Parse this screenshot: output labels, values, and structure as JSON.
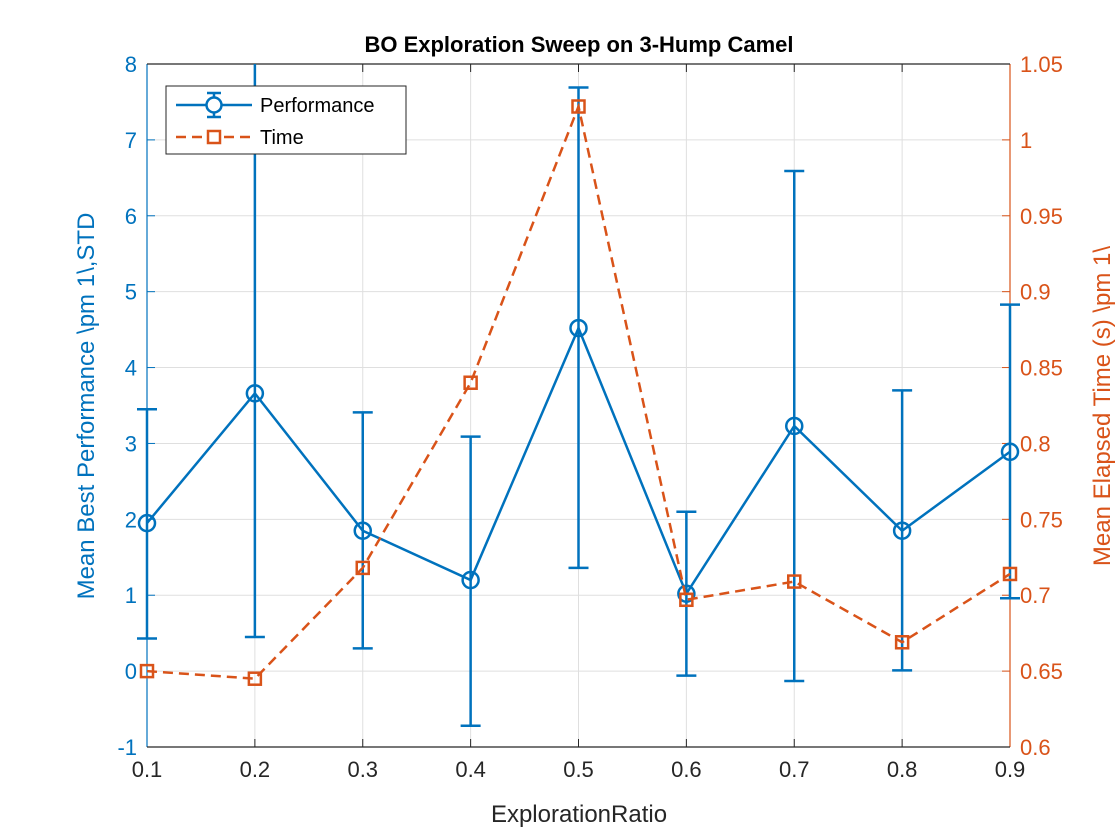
{
  "chart_data": {
    "type": "line",
    "title": "BO Exploration Sweep on 3-Hump Camel",
    "xlabel": "ExplorationRatio",
    "ylabel_left": "Mean Best Performance \\pm 1\\,STD",
    "ylabel_right": "Mean Elapsed Time (s) \\pm 1\\",
    "x": [
      0.1,
      0.2,
      0.3,
      0.4,
      0.5,
      0.6,
      0.7,
      0.8,
      0.9
    ],
    "xlim": [
      0.1,
      0.9
    ],
    "ylim_left": [
      -1,
      8
    ],
    "ylim_right": [
      0.6,
      1.05
    ],
    "x_ticks": [
      "0.1",
      "0.2",
      "0.3",
      "0.4",
      "0.5",
      "0.6",
      "0.7",
      "0.8",
      "0.9"
    ],
    "y_ticks_left": [
      "-1",
      "0",
      "1",
      "2",
      "3",
      "4",
      "5",
      "6",
      "7",
      "8"
    ],
    "y_ticks_right": [
      "0.6",
      "0.65",
      "0.7",
      "0.75",
      "0.8",
      "0.85",
      "0.9",
      "0.95",
      "1",
      "1.05"
    ],
    "grid": true,
    "legend_position": "top-left",
    "series": [
      {
        "name": "Performance",
        "axis": "left",
        "style": "solid line with circle markers and error bars",
        "color": "#0072BD",
        "values": [
          1.95,
          3.66,
          1.85,
          1.2,
          4.52,
          1.02,
          3.23,
          1.85,
          2.89
        ],
        "error_low": [
          0.43,
          0.45,
          0.3,
          -0.72,
          1.36,
          -0.06,
          -0.13,
          0.01,
          0.96
        ],
        "error_high": [
          3.45,
          8.0,
          3.41,
          3.09,
          7.69,
          2.1,
          6.59,
          3.7,
          4.83
        ]
      },
      {
        "name": "Time",
        "axis": "right",
        "style": "dashed line with square markers",
        "color": "#D95319",
        "values": [
          0.65,
          0.645,
          0.718,
          0.84,
          1.022,
          0.697,
          0.709,
          0.669,
          0.714
        ]
      }
    ]
  }
}
